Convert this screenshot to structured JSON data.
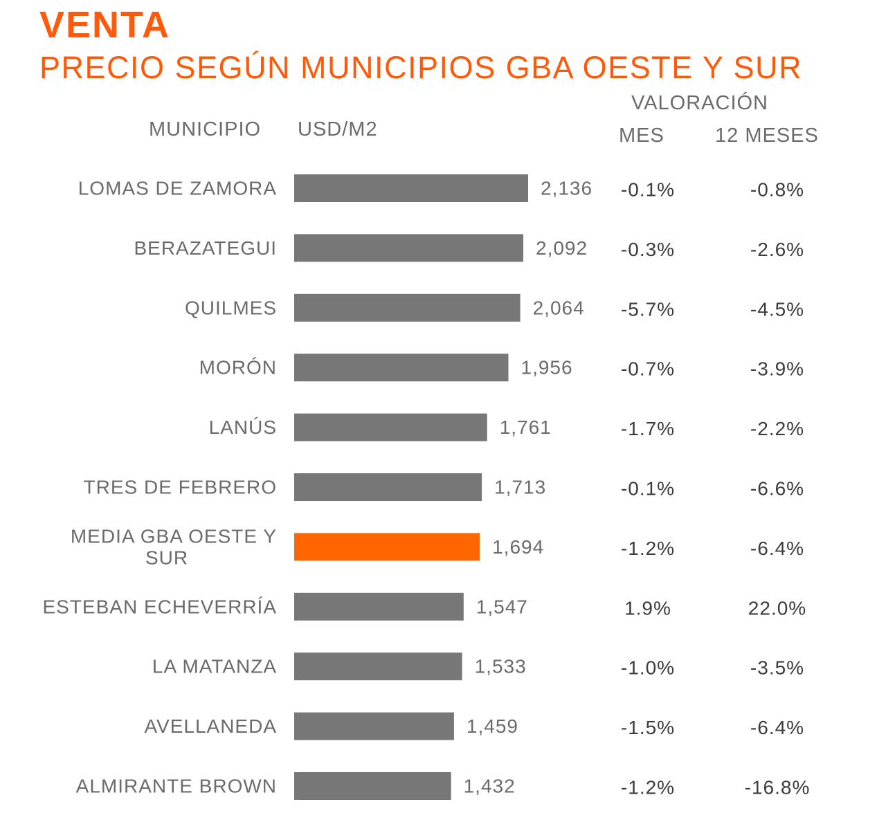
{
  "header": {
    "title": "VENTA",
    "subtitle": "PRECIO SEGÚN MUNICIPIOS GBA OESTE Y SUR",
    "col_municipio": "MUNICIPIO",
    "col_usd": "USD/M2",
    "col_valoracion": "VALORACIÓN",
    "col_mes": "MES",
    "col_12meses": "12 MESES"
  },
  "colors": {
    "accent": "#ff5a0a",
    "bar": "#777777",
    "bar_highlight": "#ff6600",
    "text": "#6b6b6b"
  },
  "chart_data": {
    "type": "bar",
    "orientation": "horizontal",
    "title": "VENTA",
    "subtitle": "PRECIO SEGÚN MUNICIPIOS GBA OESTE Y SUR",
    "xlabel": "USD/M2",
    "ylabel": "MUNICIPIO",
    "xlim": [
      0,
      2136
    ],
    "grid": false,
    "categories": [
      [
        "LOMAS DE ZAMORA"
      ],
      [
        "BERAZATEGUI"
      ],
      [
        "QUILMES"
      ],
      [
        "MORÓN"
      ],
      [
        "LANÚS"
      ],
      [
        "TRES DE FEBRERO"
      ],
      [
        "MEDIA GBA OESTE Y",
        "SUR"
      ],
      [
        "ESTEBAN ECHEVERRÍA"
      ],
      [
        "LA MATANZA"
      ],
      [
        "AVELLANEDA"
      ],
      [
        "ALMIRANTE BROWN"
      ]
    ],
    "values": [
      2136,
      2092,
      2064,
      1956,
      1761,
      1713,
      1694,
      1547,
      1533,
      1459,
      1432
    ],
    "value_labels": [
      "2,136",
      "2,092",
      "2,064",
      "1,956",
      "1,761",
      "1,713",
      "1,694",
      "1,547",
      "1,533",
      "1,459",
      "1,432"
    ],
    "highlight_index": 6,
    "valoracion_mes": [
      "-0.1%",
      "-0.3%",
      "-5.7%",
      "-0.7%",
      "-1.7%",
      "-0.1%",
      "-1.2%",
      "1.9%",
      "-1.0%",
      "-1.5%",
      "-1.2%"
    ],
    "valoracion_12_meses": [
      "-0.8%",
      "-2.6%",
      "-4.5%",
      "-3.9%",
      "-2.2%",
      "-6.6%",
      "-6.4%",
      "22.0%",
      "-3.5%",
      "-6.4%",
      "-16.8%"
    ]
  }
}
